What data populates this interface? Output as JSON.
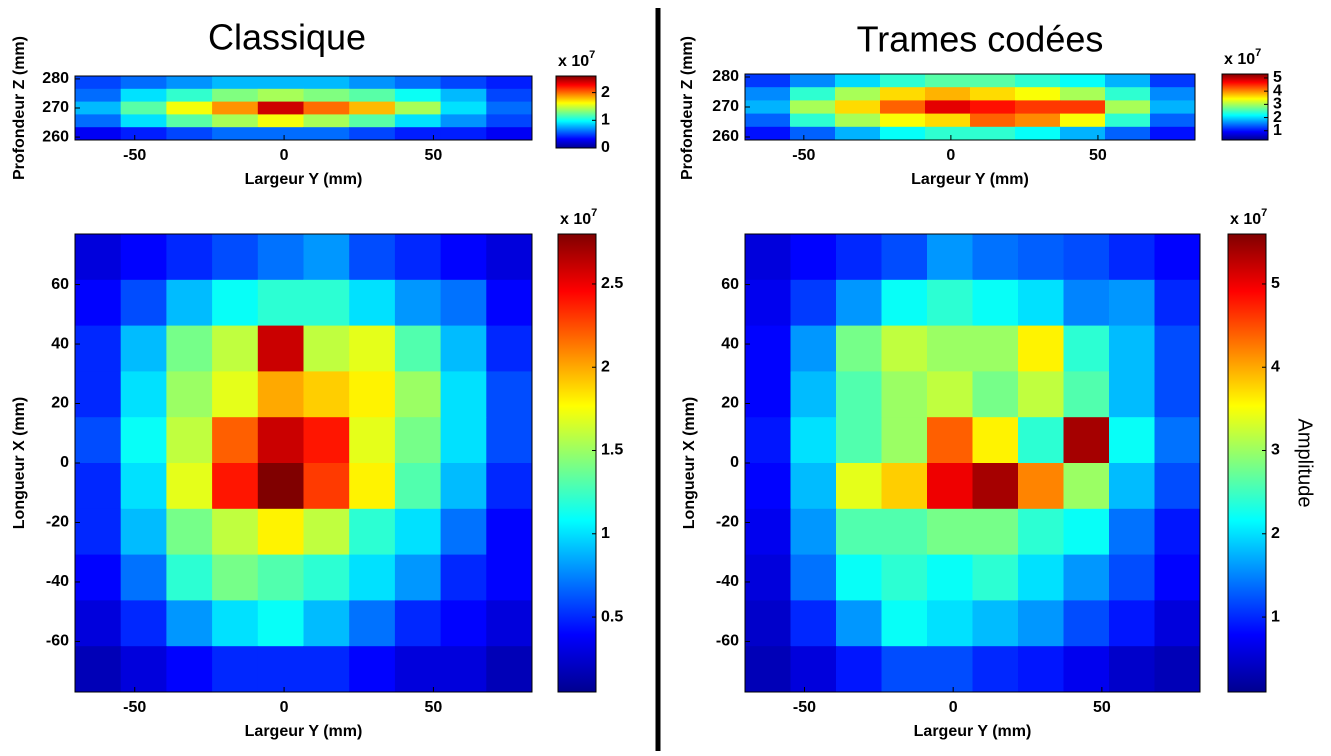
{
  "chart_data": [
    {
      "type": "heatmap",
      "title": "Classique",
      "xlabel": "Largeur Y (mm)",
      "ylabel": "Profondeur Z (mm)",
      "xlim": [
        -70,
        83
      ],
      "ylim": [
        259,
        281
      ],
      "xticks": [
        -50,
        0,
        50
      ],
      "yticks": [
        260,
        270,
        280
      ],
      "colormap": "jet",
      "colorbar": {
        "lim": [
          0,
          2.6
        ],
        "ticks": [
          0,
          1,
          2
        ],
        "scale_base": "x 10",
        "scale_exponent": "7"
      },
      "values": [
        [
          0.5,
          0.6,
          0.7,
          0.8,
          0.8,
          0.8,
          0.7,
          0.6,
          0.5,
          0.4
        ],
        [
          0.6,
          0.9,
          1.1,
          1.3,
          1.4,
          1.3,
          1.2,
          1.0,
          0.8,
          0.5
        ],
        [
          0.8,
          1.2,
          1.6,
          1.9,
          2.4,
          2.0,
          1.8,
          1.4,
          0.9,
          0.6
        ],
        [
          0.6,
          0.9,
          1.2,
          1.4,
          1.6,
          1.4,
          1.2,
          0.9,
          0.7,
          0.5
        ],
        [
          0.3,
          0.4,
          0.5,
          0.6,
          0.6,
          0.6,
          0.5,
          0.4,
          0.4,
          0.3
        ]
      ]
    },
    {
      "type": "heatmap",
      "title": "Trames codées",
      "xlabel": "Largeur Y (mm)",
      "ylabel": "Profondeur Z (mm)",
      "xlim": [
        -70,
        83
      ],
      "ylim": [
        259,
        281
      ],
      "xticks": [
        -50,
        0,
        50
      ],
      "yticks": [
        260,
        270,
        280
      ],
      "colormap": "jet",
      "colorbar": {
        "lim": [
          0.3,
          5.3
        ],
        "ticks": [
          1,
          2,
          3,
          4,
          5
        ],
        "scale_base": "x 10",
        "scale_exponent": "7"
      },
      "values": [
        [
          1.2,
          1.6,
          2.0,
          2.4,
          2.6,
          2.6,
          2.4,
          2.2,
          1.8,
          1.2
        ],
        [
          1.6,
          2.4,
          3.0,
          3.6,
          3.8,
          3.6,
          3.4,
          3.0,
          2.4,
          1.6
        ],
        [
          1.8,
          3.0,
          3.6,
          4.2,
          4.8,
          4.6,
          4.4,
          4.4,
          3.0,
          1.8
        ],
        [
          1.4,
          2.4,
          3.0,
          3.4,
          3.6,
          4.2,
          4.0,
          3.4,
          2.4,
          1.4
        ],
        [
          1.0,
          1.4,
          1.8,
          2.2,
          2.4,
          2.4,
          2.2,
          1.8,
          1.4,
          1.0
        ]
      ]
    },
    {
      "type": "heatmap",
      "xlabel": "Largeur Y (mm)",
      "ylabel": "Longueur X (mm)",
      "xlim": [
        -70,
        83
      ],
      "ylim": [
        -77,
        77
      ],
      "xticks": [
        -50,
        0,
        50
      ],
      "yticks": [
        -60,
        -40,
        -20,
        0,
        20,
        40,
        60
      ],
      "colormap": "jet",
      "colorbar": {
        "lim": [
          0.05,
          2.8
        ],
        "ticks": [
          0.5,
          1,
          1.5,
          2,
          2.5
        ],
        "scale_base": "x 10",
        "scale_exponent": "7"
      },
      "values": [
        [
          0.3,
          0.4,
          0.5,
          0.6,
          0.7,
          0.8,
          0.6,
          0.5,
          0.4,
          0.3
        ],
        [
          0.4,
          0.6,
          0.9,
          1.1,
          1.2,
          1.2,
          1.0,
          0.8,
          0.7,
          0.4
        ],
        [
          0.5,
          0.9,
          1.4,
          1.6,
          2.6,
          1.6,
          1.7,
          1.3,
          0.9,
          0.5
        ],
        [
          0.5,
          1.0,
          1.5,
          1.7,
          2.0,
          1.9,
          1.8,
          1.5,
          1.0,
          0.6
        ],
        [
          0.6,
          1.1,
          1.6,
          2.2,
          2.6,
          2.4,
          1.7,
          1.4,
          1.0,
          0.6
        ],
        [
          0.5,
          1.0,
          1.7,
          2.4,
          2.8,
          2.3,
          1.8,
          1.3,
          0.9,
          0.5
        ],
        [
          0.5,
          0.9,
          1.4,
          1.6,
          1.8,
          1.6,
          1.2,
          1.0,
          0.7,
          0.4
        ],
        [
          0.4,
          0.7,
          1.2,
          1.4,
          1.3,
          1.2,
          1.0,
          0.8,
          0.5,
          0.4
        ],
        [
          0.3,
          0.5,
          0.8,
          1.0,
          1.1,
          0.9,
          0.7,
          0.5,
          0.4,
          0.3
        ],
        [
          0.2,
          0.3,
          0.4,
          0.5,
          0.5,
          0.5,
          0.4,
          0.3,
          0.3,
          0.2
        ]
      ]
    },
    {
      "type": "heatmap",
      "xlabel": "Largeur Y (mm)",
      "ylabel": "Longueur X (mm)",
      "xlim": [
        -70,
        83
      ],
      "ylim": [
        -77,
        77
      ],
      "xticks": [
        -50,
        0,
        50
      ],
      "yticks": [
        -60,
        -40,
        -20,
        0,
        20,
        40,
        60
      ],
      "colormap": "jet",
      "colorbar": {
        "lim": [
          0.1,
          5.6
        ],
        "ticks": [
          1,
          2,
          3,
          4,
          5
        ],
        "scale_base": "x 10",
        "scale_exponent": "7",
        "label": "Amplitude"
      },
      "values": [
        [
          0.6,
          0.8,
          1.0,
          1.2,
          1.6,
          1.4,
          1.3,
          1.2,
          1.0,
          0.8
        ],
        [
          0.7,
          1.1,
          1.6,
          2.2,
          2.4,
          2.2,
          2.0,
          1.5,
          1.6,
          1.0
        ],
        [
          0.8,
          1.6,
          2.8,
          3.2,
          3.0,
          3.0,
          3.6,
          2.4,
          1.8,
          1.2
        ],
        [
          0.8,
          1.8,
          2.6,
          3.0,
          3.2,
          2.8,
          3.2,
          2.6,
          1.8,
          1.2
        ],
        [
          0.9,
          2.0,
          2.6,
          3.0,
          4.4,
          3.6,
          2.4,
          5.4,
          2.2,
          1.4
        ],
        [
          0.8,
          1.8,
          3.4,
          3.8,
          5.0,
          5.4,
          4.2,
          3.0,
          1.8,
          1.2
        ],
        [
          0.7,
          1.6,
          2.6,
          2.6,
          2.8,
          2.8,
          2.4,
          2.2,
          1.4,
          0.9
        ],
        [
          0.6,
          1.4,
          2.2,
          2.4,
          2.2,
          2.4,
          2.0,
          1.6,
          1.2,
          0.8
        ],
        [
          0.5,
          1.0,
          1.6,
          2.2,
          2.0,
          1.8,
          1.6,
          1.2,
          0.9,
          0.6
        ],
        [
          0.4,
          0.6,
          0.9,
          1.2,
          1.2,
          1.0,
          0.9,
          0.7,
          0.5,
          0.4
        ]
      ]
    }
  ]
}
